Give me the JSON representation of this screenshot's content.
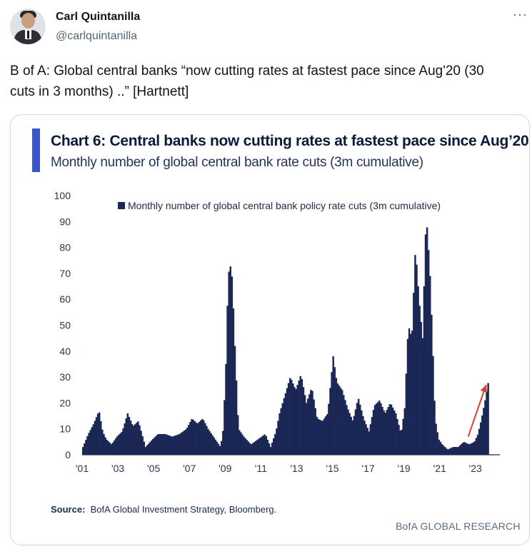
{
  "tweet": {
    "author_name": "Carl Quintanilla",
    "author_handle": "@carlquintanilla",
    "more_label": "···",
    "text": "B of A: Global central banks “now cutting rates at fastest pace since Aug'20 (30 cuts in 3 months) ..” [Hartnett]"
  },
  "chart": {
    "title": "Chart 6: Central banks now cutting rates at fastest pace since Aug’20",
    "subtitle": "Monthly number of global central bank rate cuts (3m cumulative)",
    "source_label": "Source:",
    "source_text": "BofA Global Investment Strategy, Bloomberg.",
    "brand": "BofA GLOBAL RESEARCH"
  },
  "colors": {
    "bars": "#1b2755",
    "accent": "#3b54d1",
    "arrow": "#d9412e"
  },
  "chart_data": {
    "type": "area",
    "title": "Chart 6: Central banks now cutting rates at fastest pace since Aug’20",
    "subtitle": "Monthly number of global central bank rate cuts (3m cumulative)",
    "ylim": [
      0,
      100
    ],
    "yticks": [
      0,
      10,
      20,
      30,
      40,
      50,
      60,
      70,
      80,
      90,
      100
    ],
    "xtick_labels": [
      "'01",
      "'03",
      "'05",
      "'07",
      "'09",
      "'11",
      "'13",
      "'15",
      "'17",
      "'19",
      "'21",
      "'23"
    ],
    "xlim": [
      2001.0,
      2024.25
    ],
    "grid": false,
    "legend": "top",
    "series": [
      {
        "name": "Monthly number of global central bank policy rate cuts (3m cumulative)",
        "x": [
          2001.0,
          2001.3,
          2001.6,
          2001.9,
          2002.1,
          2002.3,
          2002.6,
          2002.9,
          2003.2,
          2003.5,
          2003.8,
          2004.1,
          2004.5,
          2004.9,
          2005.2,
          2005.6,
          2006.0,
          2006.4,
          2006.8,
          2007.1,
          2007.4,
          2007.7,
          2008.0,
          2008.4,
          2008.7,
          2008.85,
          2009.0,
          2009.1,
          2009.2,
          2009.35,
          2009.5,
          2009.7,
          2010.0,
          2010.4,
          2010.8,
          2011.2,
          2011.5,
          2011.8,
          2012.0,
          2012.3,
          2012.6,
          2012.9,
          2013.2,
          2013.5,
          2013.8,
          2014.1,
          2014.4,
          2014.7,
          2015.0,
          2015.2,
          2015.5,
          2015.8,
          2016.1,
          2016.4,
          2016.7,
          2017.0,
          2017.3,
          2017.6,
          2017.9,
          2018.2,
          2018.5,
          2018.8,
          2019.0,
          2019.2,
          2019.4,
          2019.6,
          2019.8,
          2020.0,
          2020.2,
          2020.4,
          2020.55,
          2020.7,
          2020.9,
          2021.1,
          2021.4,
          2021.7,
          2022.0,
          2022.3,
          2022.6,
          2022.9,
          2023.1,
          2023.3,
          2023.5,
          2023.7
        ],
        "values": [
          3,
          8,
          12,
          17,
          9,
          6,
          4,
          7,
          9,
          16,
          11,
          13,
          3,
          6,
          8,
          8,
          7,
          8,
          10,
          14,
          12,
          14,
          10,
          6,
          3,
          10,
          35,
          62,
          75,
          68,
          42,
          10,
          7,
          4,
          6,
          8,
          3,
          9,
          16,
          23,
          30,
          25,
          31,
          20,
          26,
          14,
          13,
          16,
          38,
          28,
          25,
          18,
          13,
          22,
          14,
          9,
          19,
          21,
          16,
          20,
          16,
          8,
          18,
          50,
          45,
          80,
          60,
          45,
          93,
          72,
          45,
          14,
          6,
          4,
          2,
          3,
          3,
          5,
          4,
          5,
          8,
          14,
          21,
          29
        ]
      }
    ],
    "annotations": [
      {
        "type": "arrow",
        "from": [
          2022.6,
          7
        ],
        "to": [
          2023.6,
          27
        ]
      }
    ]
  }
}
